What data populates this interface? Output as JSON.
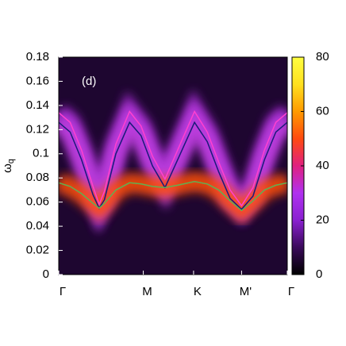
{
  "chart_data": {
    "type": "spectral-map",
    "ylabel": {
      "symbol": "ω",
      "subscript": "q"
    },
    "annotation": "(d)",
    "xlim": [
      0,
      1
    ],
    "xticks": [
      {
        "value": 0,
        "label": "Γ"
      },
      {
        "value": 0.37,
        "label": "M"
      },
      {
        "value": 0.59,
        "label": "K"
      },
      {
        "value": 0.8,
        "label": "M'"
      },
      {
        "value": 1,
        "label": "Γ"
      }
    ],
    "ylim": [
      0,
      0.18
    ],
    "yticks": [
      0,
      0.02,
      0.04,
      0.06,
      0.08,
      0.1,
      0.12,
      0.14,
      0.16,
      0.18
    ],
    "background": "#1e0630",
    "colorbar": {
      "zlim": [
        0,
        80
      ],
      "zticks": [
        0,
        20,
        40,
        60,
        80
      ],
      "colormap": [
        "#000000",
        "#3a0a5a",
        "#8a20d0",
        "#b030f0",
        "#e02080",
        "#ff4a10",
        "#ff9a00",
        "#ffe020",
        "#ffff40"
      ]
    },
    "x": [
      0,
      0.05,
      0.1,
      0.15,
      0.177,
      0.2,
      0.25,
      0.31,
      0.36,
      0.41,
      0.465,
      0.52,
      0.594,
      0.65,
      0.7,
      0.75,
      0.8,
      0.85,
      0.9,
      0.95,
      1
    ],
    "series": [
      {
        "color": "#ff40d0",
        "glow": "#b030e0",
        "values": [
          0.134,
          0.126,
          0.103,
          0.073,
          0.058,
          0.069,
          0.108,
          0.135,
          0.123,
          0.098,
          0.079,
          0.103,
          0.135,
          0.118,
          0.093,
          0.07,
          0.057,
          0.072,
          0.103,
          0.126,
          0.134
        ]
      },
      {
        "color": "#1a1a7a",
        "glow": "#c040e0",
        "values": [
          0.126,
          0.118,
          0.095,
          0.066,
          0.055,
          0.062,
          0.1,
          0.126,
          0.115,
          0.09,
          0.072,
          0.095,
          0.126,
          0.11,
          0.085,
          0.063,
          0.054,
          0.065,
          0.095,
          0.118,
          0.126
        ]
      },
      {
        "color": "#60b050",
        "glow": "#ff5010",
        "values": [
          0.076,
          0.073,
          0.067,
          0.059,
          0.055,
          0.059,
          0.07,
          0.076,
          0.075,
          0.073,
          0.072,
          0.074,
          0.077,
          0.075,
          0.07,
          0.061,
          0.053,
          0.061,
          0.07,
          0.074,
          0.076
        ]
      }
    ]
  }
}
